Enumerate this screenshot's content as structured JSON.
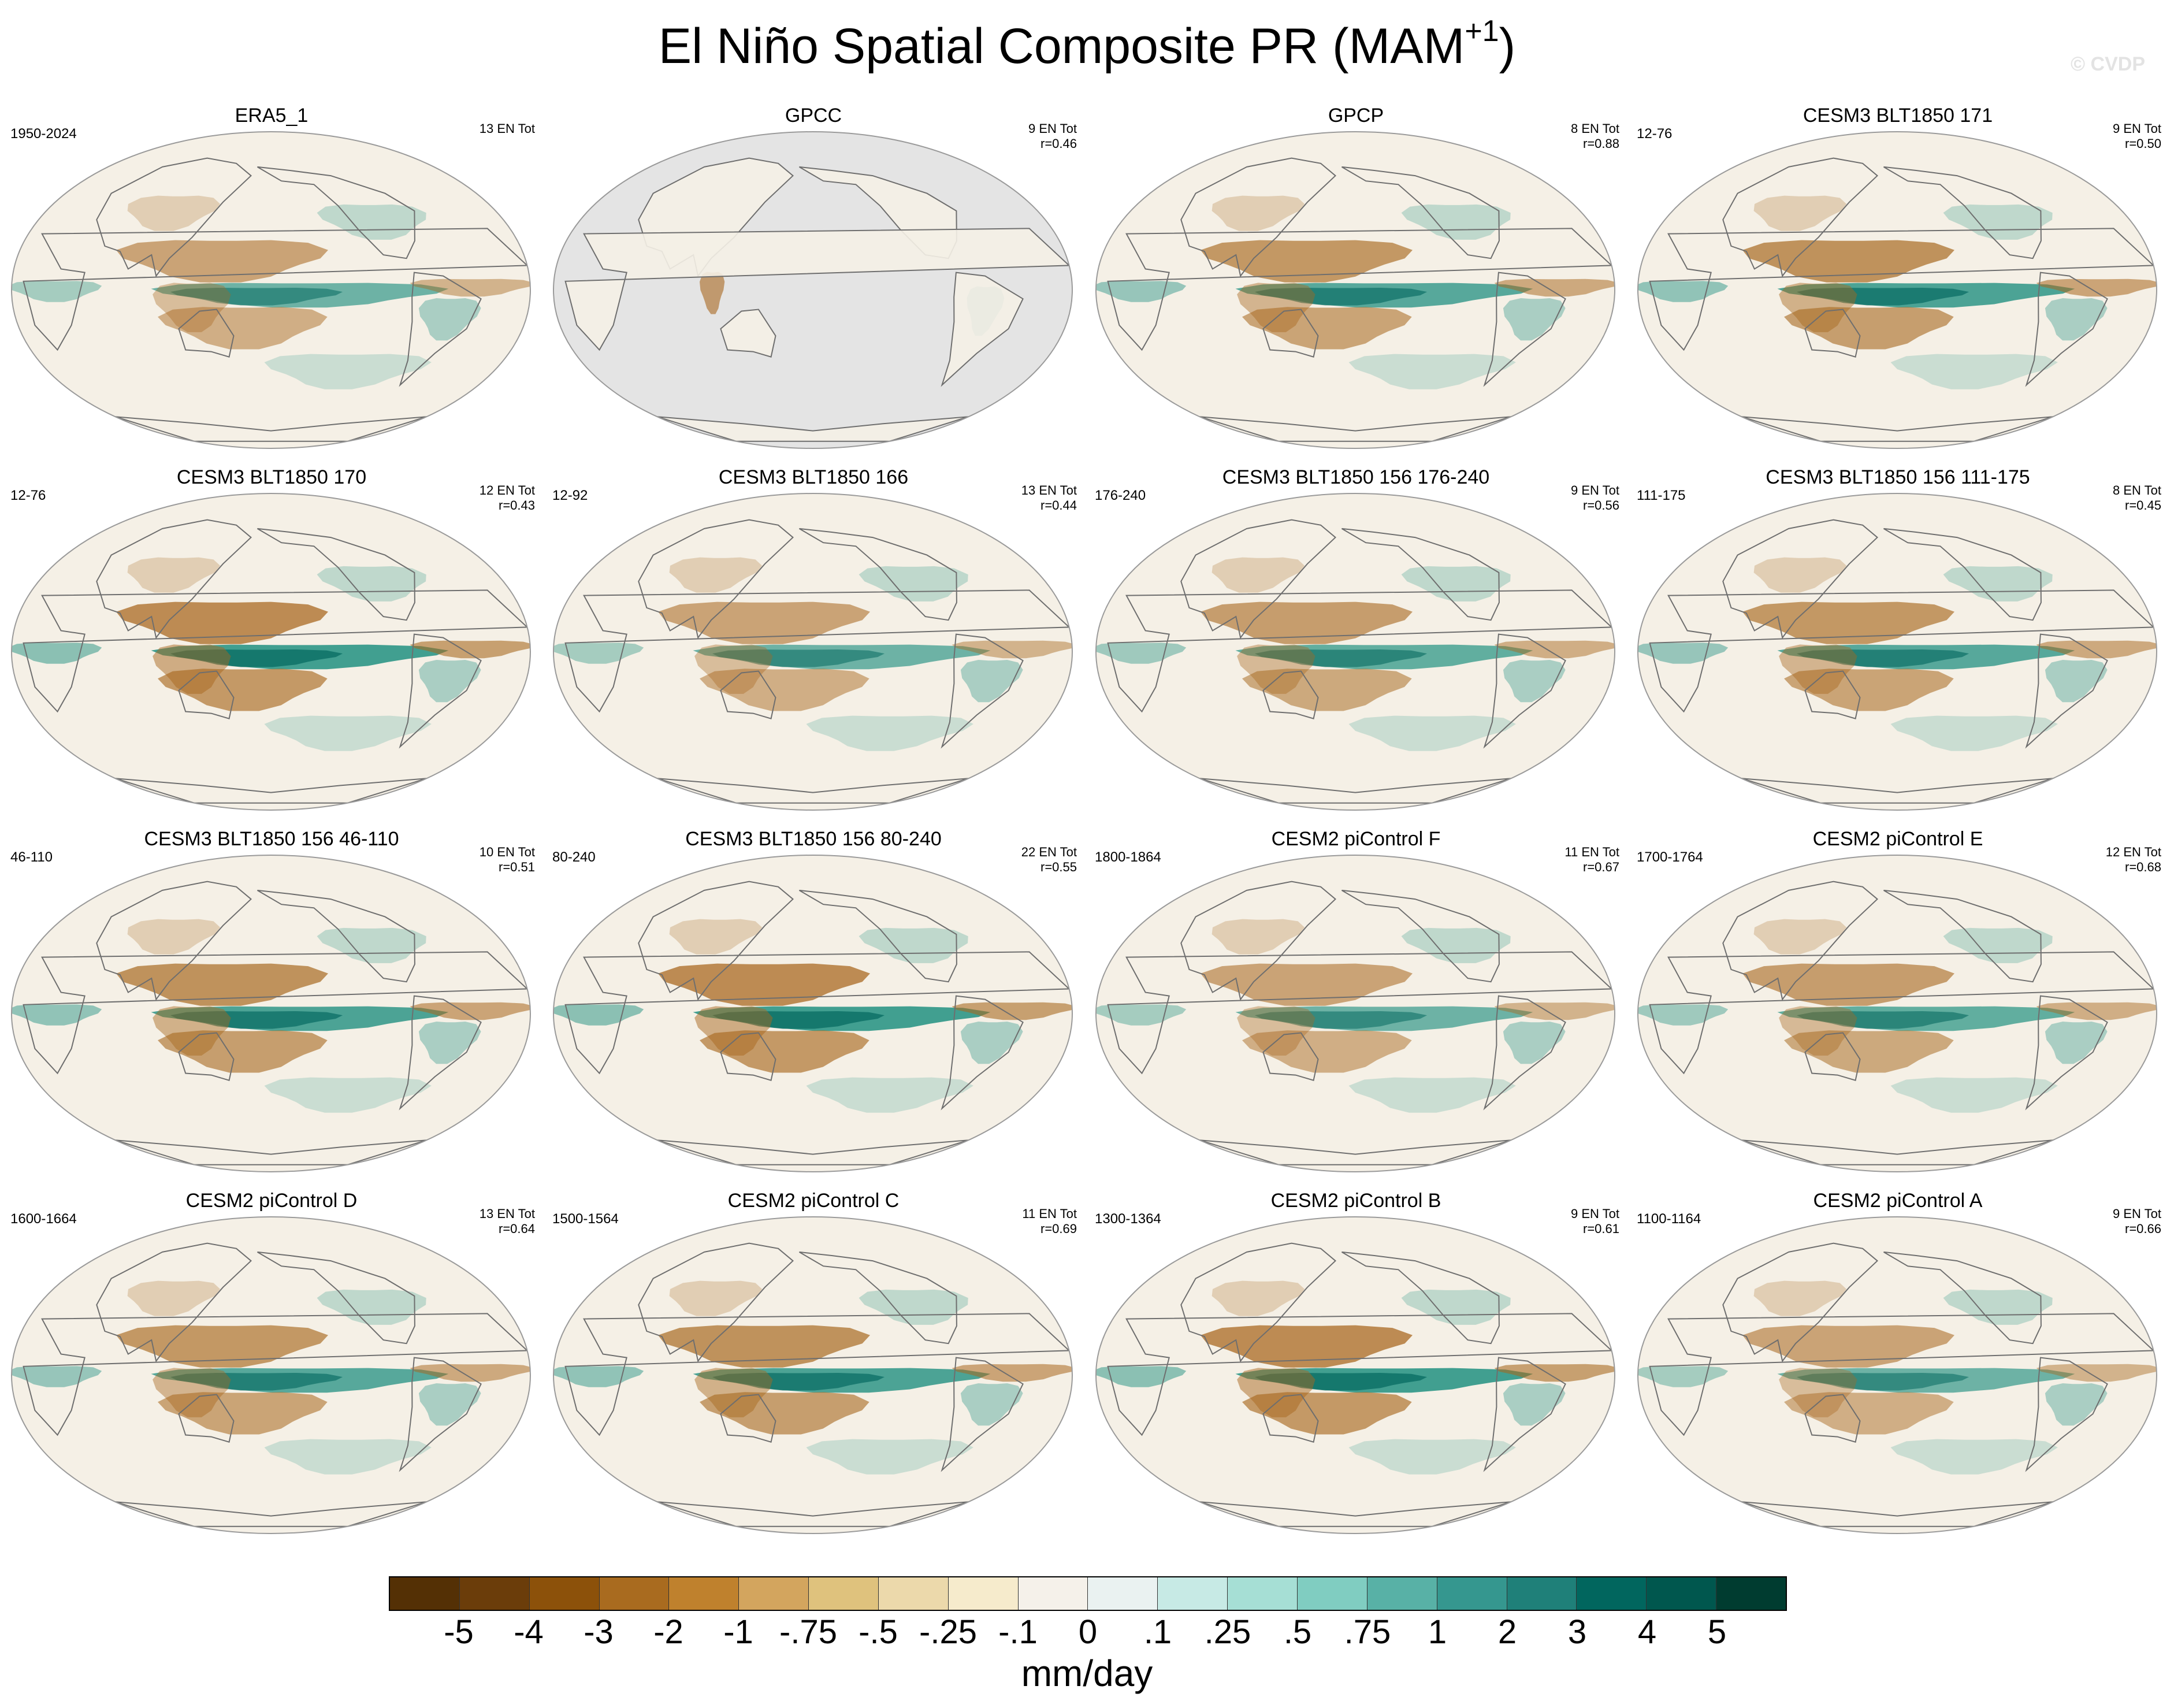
{
  "title": {
    "main": "El Niño Spatial Composite PR (MAM",
    "sup": "+1",
    "close": ")"
  },
  "watermark": "© CVDP",
  "colors": {
    "ocean_fill": "#f5f0e6",
    "masked_fill": "#e4e4e4",
    "coast_line": "#6e6e6e",
    "dry": "#a8681f",
    "wet": "#1f8f80"
  },
  "panels": [
    {
      "name": "ERA5_1",
      "period": "1950-2024",
      "events": "13 EN Tot",
      "corr": "",
      "masked_ocean": false
    },
    {
      "name": "GPCC",
      "period": "",
      "events": "9 EN Tot",
      "corr": "r=0.46",
      "masked_ocean": true
    },
    {
      "name": "GPCP",
      "period": "",
      "events": "8 EN Tot",
      "corr": "r=0.88",
      "masked_ocean": false
    },
    {
      "name": "CESM3 BLT1850 171",
      "period": "12-76",
      "events": "9 EN Tot",
      "corr": "r=0.50",
      "masked_ocean": false
    },
    {
      "name": "CESM3 BLT1850 170",
      "period": "12-76",
      "events": "12 EN Tot",
      "corr": "r=0.43",
      "masked_ocean": false
    },
    {
      "name": "CESM3 BLT1850 166",
      "period": "12-92",
      "events": "13 EN Tot",
      "corr": "r=0.44",
      "masked_ocean": false
    },
    {
      "name": "CESM3 BLT1850 156 176-240",
      "period": "176-240",
      "events": "9 EN Tot",
      "corr": "r=0.56",
      "masked_ocean": false
    },
    {
      "name": "CESM3 BLT1850 156 111-175",
      "period": "111-175",
      "events": "8 EN Tot",
      "corr": "r=0.45",
      "masked_ocean": false
    },
    {
      "name": "CESM3 BLT1850 156 46-110",
      "period": "46-110",
      "events": "10 EN Tot",
      "corr": "r=0.51",
      "masked_ocean": false
    },
    {
      "name": "CESM3 BLT1850 156 80-240",
      "period": "80-240",
      "events": "22 EN Tot",
      "corr": "r=0.55",
      "masked_ocean": false
    },
    {
      "name": "CESM2 piControl F",
      "period": "1800-1864",
      "events": "11 EN Tot",
      "corr": "r=0.67",
      "masked_ocean": false
    },
    {
      "name": "CESM2 piControl E",
      "period": "1700-1764",
      "events": "12 EN Tot",
      "corr": "r=0.68",
      "masked_ocean": false
    },
    {
      "name": "CESM2 piControl D",
      "period": "1600-1664",
      "events": "13 EN Tot",
      "corr": "r=0.64",
      "masked_ocean": false
    },
    {
      "name": "CESM2 piControl C",
      "period": "1500-1564",
      "events": "11 EN Tot",
      "corr": "r=0.69",
      "masked_ocean": false
    },
    {
      "name": "CESM2 piControl B",
      "period": "1300-1364",
      "events": "9 EN Tot",
      "corr": "r=0.61",
      "masked_ocean": false
    },
    {
      "name": "CESM2 piControl A",
      "period": "1100-1164",
      "events": "9 EN Tot",
      "corr": "r=0.66",
      "masked_ocean": false
    }
  ],
  "colorbar": {
    "colors": [
      "#543005",
      "#6b3d0a",
      "#8c510a",
      "#a96b1f",
      "#bf812d",
      "#d3a55e",
      "#dfc27d",
      "#ecd9ab",
      "#f6ebcc",
      "#f5f1ea",
      "#eaf2f1",
      "#c7eae5",
      "#a6dfd5",
      "#80cdc1",
      "#58b1a6",
      "#35978f",
      "#1f8079",
      "#01665e",
      "#00574e",
      "#003c30"
    ],
    "labels": [
      "-5",
      "-4",
      "-3",
      "-2",
      "-1",
      "-.75",
      "-.5",
      "-.25",
      "-.1",
      "0",
      ".1",
      ".25",
      ".5",
      ".75",
      "1",
      "2",
      "3",
      "4",
      "5"
    ],
    "units": "mm/day"
  }
}
